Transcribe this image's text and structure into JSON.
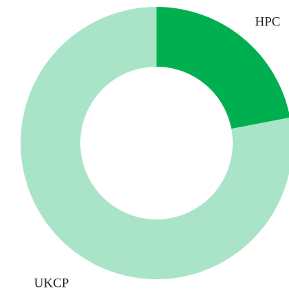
{
  "chart_data": {
    "type": "donut",
    "categories": [
      "HPC",
      "UKCP"
    ],
    "values": [
      22,
      78
    ],
    "colors": [
      "#00b050",
      "#a9e4c9"
    ]
  }
}
